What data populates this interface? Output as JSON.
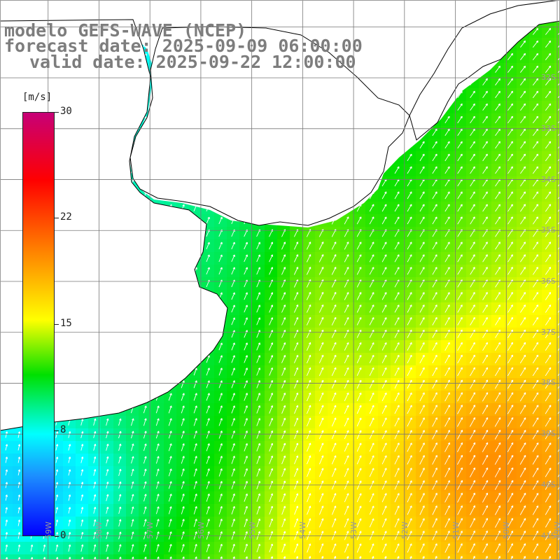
{
  "title": {
    "line1": "modelo GEFS-WAVE (NCEP)",
    "line2": "forecast date: 2025-09-09 06:00:00",
    "line3": "valid date: 2025-09-22 12:00:00"
  },
  "colorbar": {
    "unit": "[m/s]",
    "ticks": [
      "30",
      "22",
      "15",
      "8",
      "0"
    ],
    "min": 0,
    "max": 30,
    "colors": [
      "#0000ff",
      "#1c8dff",
      "#00ffff",
      "#00e000",
      "#ffff00",
      "#ff6d00",
      "#ff0000",
      "#c70077"
    ]
  },
  "map": {
    "latitude_labels": [
      "32S",
      "33S",
      "34S",
      "35S",
      "36S",
      "37S",
      "38S",
      "39S",
      "40S",
      "41S"
    ],
    "longitude_labels": [
      "59W",
      "58W",
      "57W",
      "56W",
      "55W",
      "54W",
      "53W",
      "52W",
      "51W",
      "50W",
      "49W"
    ],
    "lat_range": [
      -41.5,
      -30.5
    ],
    "lon_range": [
      -60,
      -49
    ],
    "field": "wind speed",
    "land_color": "#ffffff",
    "coast_color": "#000000"
  }
}
